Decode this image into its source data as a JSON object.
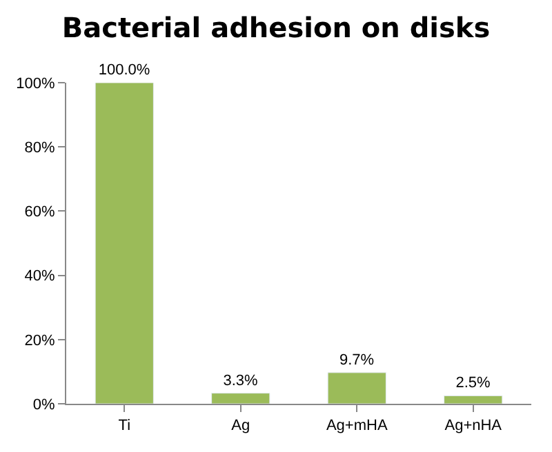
{
  "chart_data": {
    "type": "bar",
    "title": "Bacterial adhesion on disks",
    "categories": [
      "Ti",
      "Ag",
      "Ag+mHA",
      "Ag+nHA"
    ],
    "values": [
      100,
      3.3,
      9.7,
      2.5
    ],
    "value_labels": [
      "100.0%",
      "3.3%",
      "9.7%",
      "2.5%"
    ],
    "color": "#9bbb59",
    "ylim": [
      0,
      100
    ],
    "yticks": [
      {
        "value": 0,
        "label": "0%"
      },
      {
        "value": 20,
        "label": "20%"
      },
      {
        "value": 40,
        "label": "40%"
      },
      {
        "value": 60,
        "label": "60%"
      },
      {
        "value": 80,
        "label": "80%"
      },
      {
        "value": 100,
        "label": "100%"
      }
    ]
  }
}
